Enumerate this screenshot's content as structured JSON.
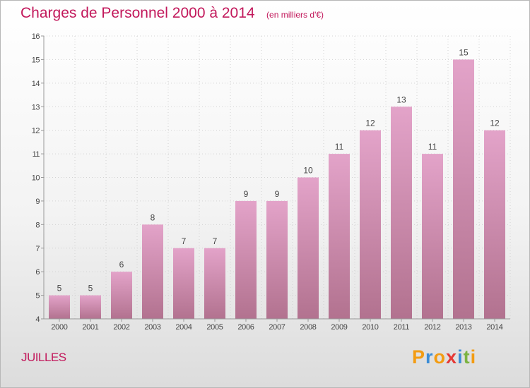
{
  "title": "Charges de Personnel 2000 à 2014",
  "subtitle": "(en milliers d'€)",
  "commune": "JUILLES",
  "logo": {
    "letters": [
      "P",
      "r",
      "o",
      "x",
      "i",
      "t",
      "i"
    ],
    "colors": [
      "#f39c12",
      "#3c8dd6",
      "#f39c12",
      "#e53935",
      "#3c8dd6",
      "#7cb342",
      "#f39c12"
    ]
  },
  "colors": {
    "bar_top": "#e3a3c9",
    "bar_bottom": "#b2728f",
    "title": "#c2185b"
  },
  "chart_data": {
    "type": "bar",
    "categories": [
      "2000",
      "2001",
      "2002",
      "2003",
      "2004",
      "2005",
      "2006",
      "2007",
      "2008",
      "2009",
      "2010",
      "2011",
      "2012",
      "2013",
      "2014"
    ],
    "values": [
      5,
      5,
      6,
      8,
      7,
      7,
      9,
      9,
      10,
      11,
      12,
      13,
      11,
      15,
      12
    ],
    "title": "Charges de Personnel 2000 à 2014",
    "ylim": [
      4,
      16
    ],
    "yticks": [
      4,
      5,
      6,
      7,
      8,
      9,
      10,
      11,
      12,
      13,
      14,
      15,
      16
    ],
    "grid": true,
    "legend": "none"
  }
}
